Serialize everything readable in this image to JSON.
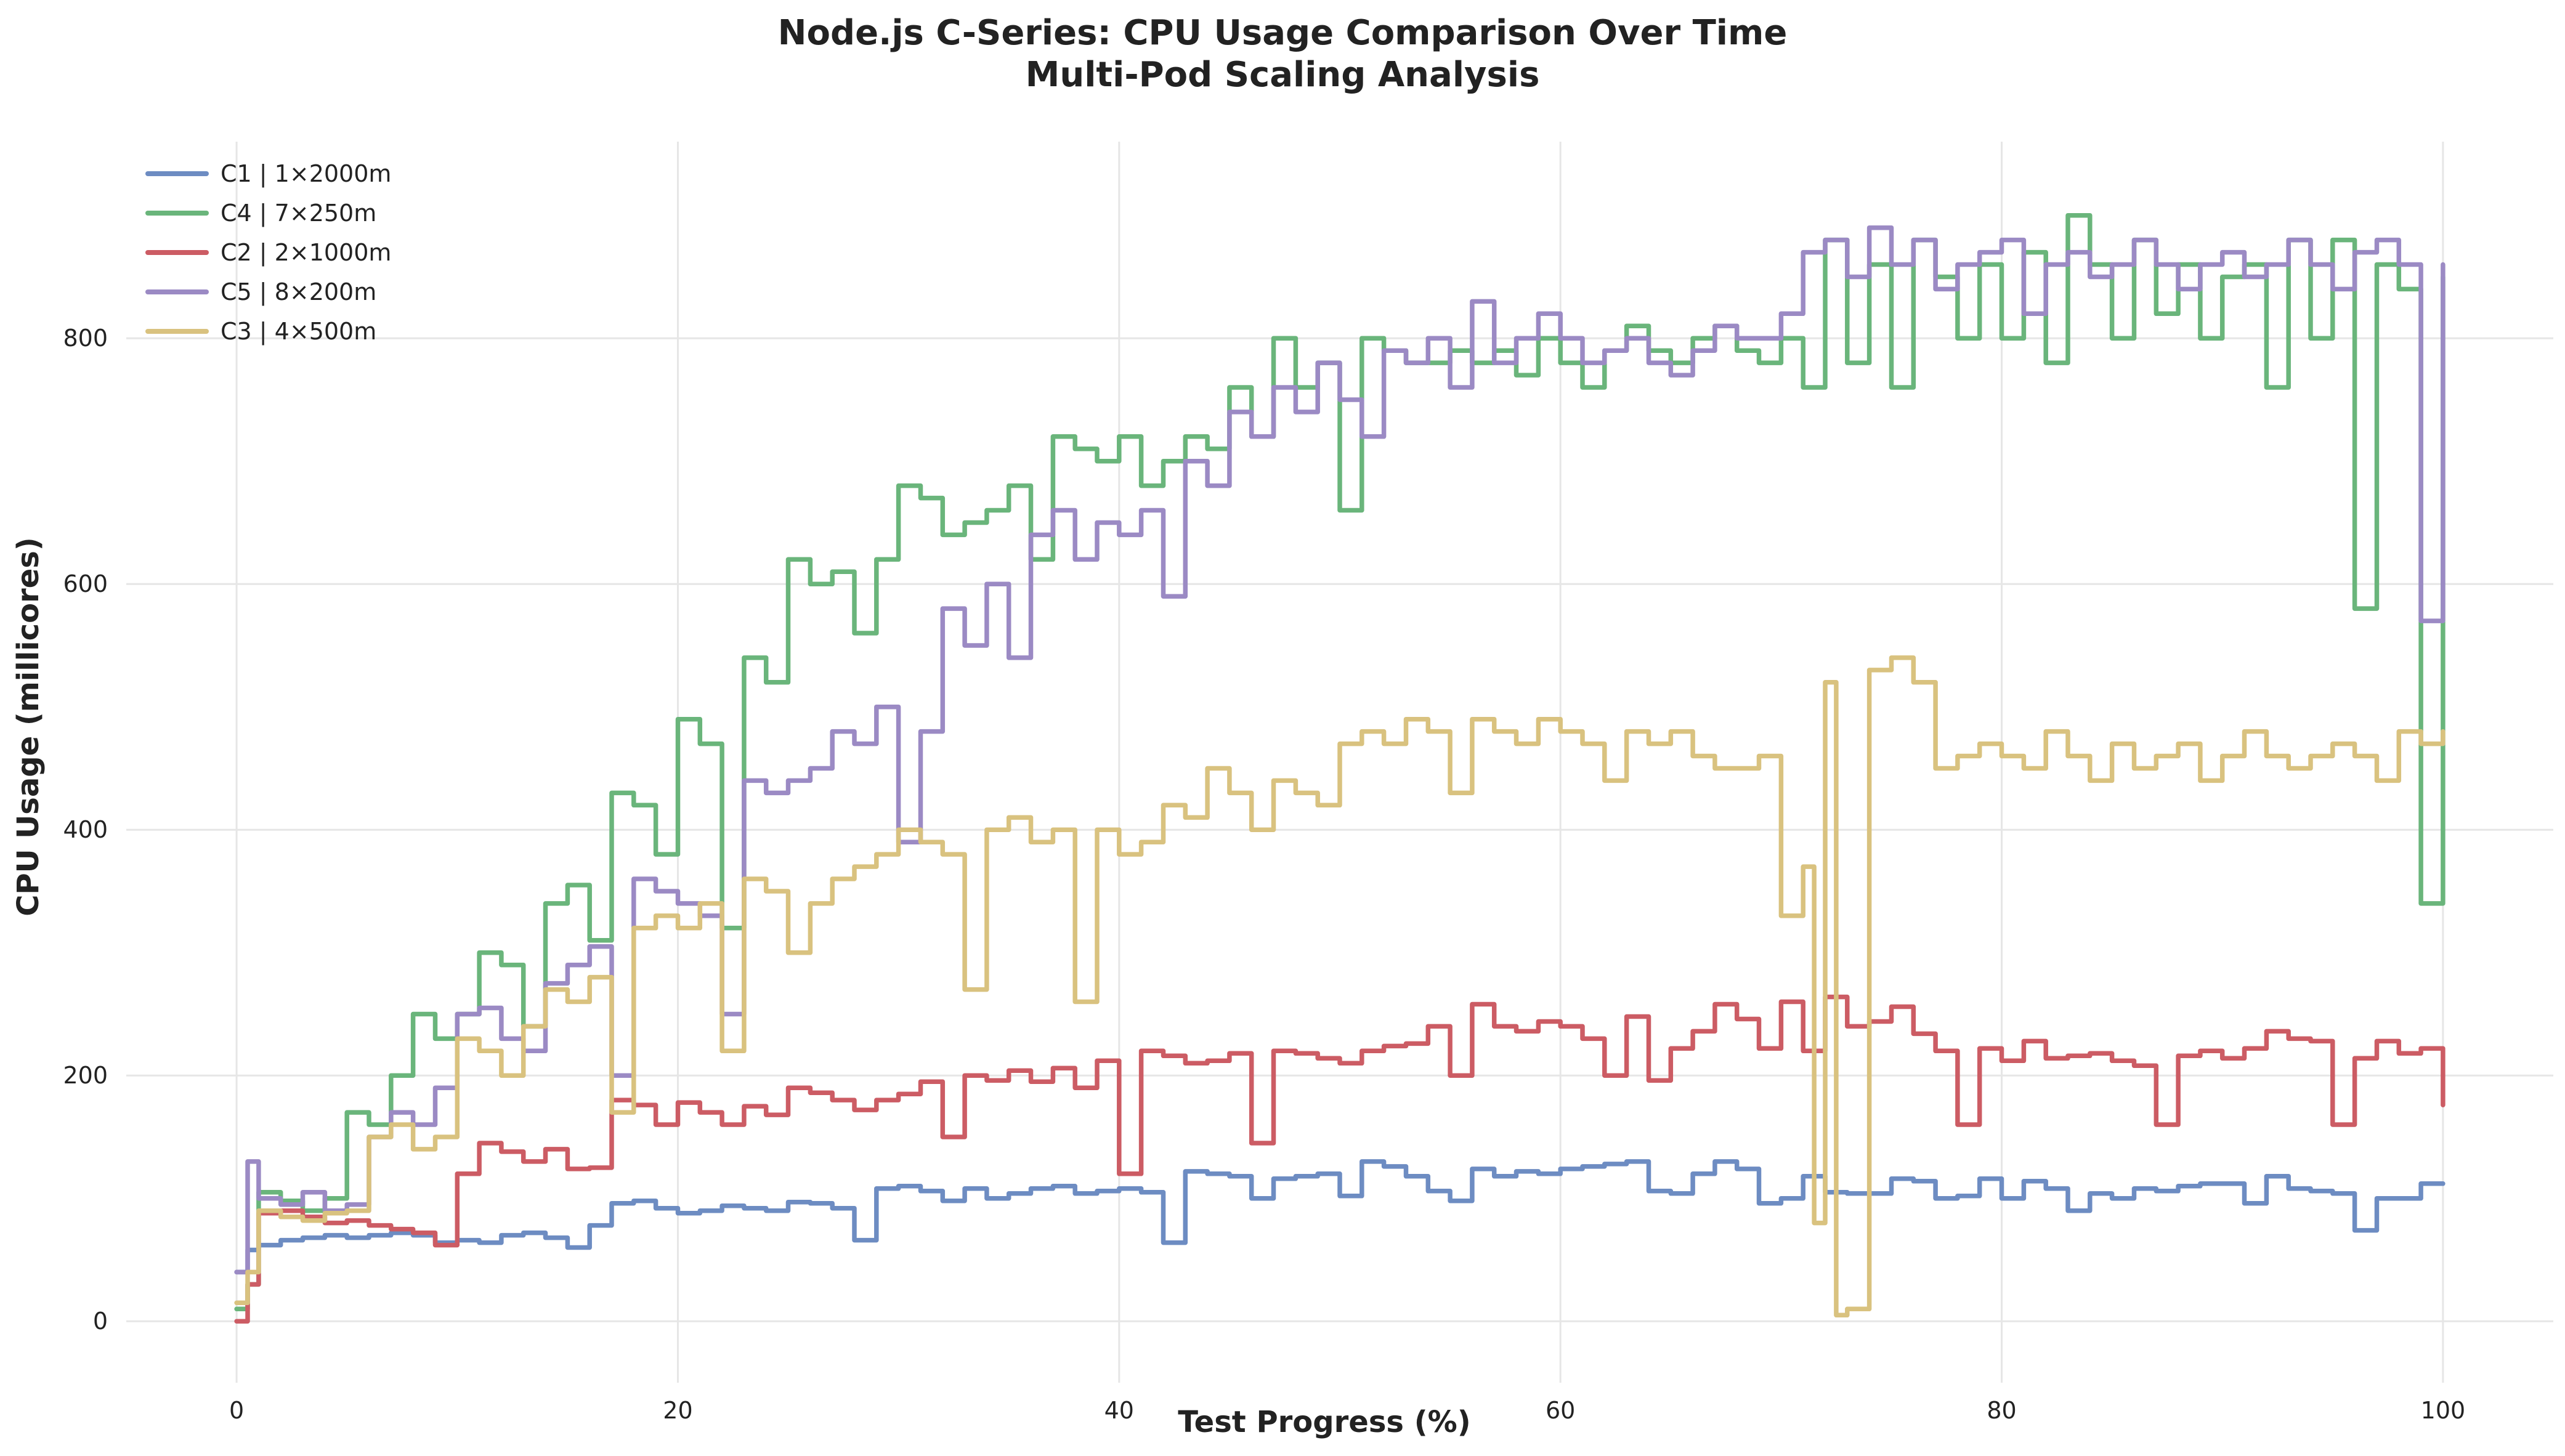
{
  "chart_data": {
    "type": "line",
    "title": "Node.js C-Series: CPU Usage Comparison Over Time",
    "subtitle": "Multi-Pod Scaling Analysis",
    "xlabel": "Test Progress (%)",
    "ylabel": "CPU Usage (millicores)",
    "xlim": [
      -5,
      105
    ],
    "ylim": [
      -50,
      960
    ],
    "xticks": [
      0,
      20,
      40,
      60,
      80,
      100
    ],
    "yticks": [
      0,
      200,
      400,
      600,
      800
    ],
    "grid": true,
    "legend_position": "top-left",
    "step": true,
    "series": [
      {
        "name": "C1 | 1×2000m",
        "color": "#6d8cc2",
        "x": [
          0,
          0.5,
          1,
          2,
          3,
          4,
          5,
          6,
          7,
          8,
          9,
          10,
          11,
          12,
          13,
          14,
          15,
          16,
          17,
          18,
          19,
          20,
          21,
          22,
          23,
          24,
          25,
          26,
          27,
          28,
          29,
          30,
          31,
          32,
          33,
          34,
          35,
          36,
          37,
          38,
          39,
          40,
          41,
          42,
          43,
          44,
          45,
          46,
          47,
          48,
          49,
          50,
          51,
          52,
          53,
          54,
          55,
          56,
          57,
          58,
          59,
          60,
          61,
          62,
          63,
          64,
          65,
          66,
          67,
          68,
          69,
          70,
          71,
          72,
          73,
          74,
          75,
          76,
          77,
          78,
          79,
          80,
          81,
          82,
          83,
          84,
          85,
          86,
          87,
          88,
          89,
          90,
          91,
          92,
          93,
          94,
          95,
          96,
          97,
          98,
          99,
          100
        ],
        "y": [
          40,
          58,
          62,
          66,
          68,
          70,
          68,
          70,
          72,
          70,
          64,
          66,
          64,
          70,
          72,
          68,
          60,
          78,
          96,
          98,
          92,
          88,
          90,
          94,
          92,
          90,
          97,
          96,
          92,
          66,
          108,
          110,
          106,
          98,
          108,
          100,
          104,
          108,
          110,
          104,
          106,
          108,
          105,
          64,
          122,
          120,
          118,
          100,
          116,
          118,
          120,
          102,
          130,
          126,
          118,
          106,
          98,
          124,
          118,
          122,
          120,
          124,
          126,
          128,
          130,
          106,
          104,
          120,
          130,
          124,
          96,
          100,
          118,
          105,
          104,
          104,
          116,
          114,
          100,
          102,
          116,
          100,
          114,
          108,
          90,
          104,
          100,
          108,
          106,
          110,
          112,
          112,
          96,
          118,
          108,
          106,
          104,
          74,
          100,
          100,
          112,
          112
        ]
      },
      {
        "name": "C4 | 7×250m",
        "color": "#6ab57b",
        "x": [
          0,
          0.5,
          1,
          2,
          3,
          4,
          5,
          6,
          7,
          8,
          9,
          10,
          11,
          12,
          13,
          14,
          15,
          16,
          17,
          18,
          19,
          20,
          21,
          22,
          23,
          24,
          25,
          26,
          27,
          28,
          29,
          30,
          31,
          32,
          33,
          34,
          35,
          36,
          37,
          38,
          39,
          40,
          41,
          42,
          43,
          44,
          45,
          46,
          47,
          48,
          49,
          50,
          51,
          52,
          53,
          54,
          55,
          56,
          57,
          58,
          59,
          60,
          61,
          62,
          63,
          64,
          65,
          66,
          67,
          68,
          69,
          70,
          71,
          72,
          73,
          74,
          75,
          76,
          77,
          78,
          79,
          80,
          81,
          82,
          83,
          84,
          85,
          86,
          87,
          88,
          89,
          90,
          91,
          92,
          93,
          94,
          95,
          96,
          97,
          98,
          99,
          100
        ],
        "y": [
          10,
          30,
          105,
          98,
          90,
          100,
          170,
          160,
          200,
          250,
          230,
          250,
          300,
          290,
          240,
          340,
          355,
          310,
          430,
          420,
          380,
          490,
          470,
          320,
          540,
          520,
          620,
          600,
          610,
          560,
          620,
          680,
          670,
          640,
          650,
          660,
          680,
          620,
          720,
          710,
          700,
          720,
          680,
          700,
          720,
          710,
          760,
          720,
          800,
          760,
          780,
          660,
          800,
          790,
          780,
          780,
          790,
          780,
          790,
          770,
          800,
          780,
          760,
          790,
          810,
          790,
          780,
          800,
          810,
          790,
          780,
          800,
          760,
          880,
          780,
          860,
          760,
          880,
          850,
          800,
          860,
          800,
          870,
          780,
          900,
          860,
          800,
          880,
          820,
          860,
          800,
          850,
          860,
          760,
          880,
          800,
          880,
          580,
          860,
          840,
          340,
          850
        ]
      },
      {
        "name": "C2 | 2×1000m",
        "color": "#cc5c64",
        "x": [
          0,
          0.5,
          1,
          2,
          3,
          4,
          5,
          6,
          7,
          8,
          9,
          10,
          11,
          12,
          13,
          14,
          15,
          16,
          17,
          18,
          19,
          20,
          21,
          22,
          23,
          24,
          25,
          26,
          27,
          28,
          29,
          30,
          31,
          32,
          33,
          34,
          35,
          36,
          37,
          38,
          39,
          40,
          41,
          42,
          43,
          44,
          45,
          46,
          47,
          48,
          49,
          50,
          51,
          52,
          53,
          54,
          55,
          56,
          57,
          58,
          59,
          60,
          61,
          62,
          63,
          64,
          65,
          66,
          67,
          68,
          69,
          70,
          71,
          72,
          73,
          74,
          75,
          76,
          77,
          78,
          79,
          80,
          81,
          82,
          83,
          84,
          85,
          86,
          87,
          88,
          89,
          90,
          91,
          92,
          93,
          94,
          95,
          96,
          97,
          98,
          99,
          100
        ],
        "y": [
          0,
          30,
          88,
          90,
          85,
          80,
          82,
          78,
          75,
          72,
          62,
          120,
          145,
          138,
          130,
          140,
          124,
          125,
          180,
          176,
          160,
          178,
          170,
          160,
          175,
          168,
          190,
          186,
          180,
          172,
          180,
          185,
          195,
          150,
          200,
          196,
          204,
          195,
          206,
          190,
          212,
          120,
          220,
          216,
          210,
          212,
          218,
          145,
          220,
          218,
          214,
          210,
          220,
          224,
          226,
          240,
          200,
          258,
          240,
          236,
          244,
          240,
          230,
          200,
          248,
          196,
          222,
          236,
          258,
          246,
          222,
          260,
          220,
          264,
          240,
          244,
          256,
          234,
          220,
          160,
          222,
          212,
          228,
          214,
          216,
          218,
          212,
          208,
          160,
          216,
          220,
          214,
          222,
          236,
          230,
          228,
          160,
          214,
          228,
          218,
          222,
          176
        ]
      },
      {
        "name": "C5 | 8×200m",
        "color": "#9b8ac4",
        "x": [
          0,
          0.5,
          1,
          2,
          3,
          4,
          5,
          6,
          7,
          8,
          9,
          10,
          11,
          12,
          13,
          14,
          15,
          16,
          17,
          18,
          19,
          20,
          21,
          22,
          23,
          24,
          25,
          26,
          27,
          28,
          29,
          30,
          31,
          32,
          33,
          34,
          35,
          36,
          37,
          38,
          39,
          40,
          41,
          42,
          43,
          44,
          45,
          46,
          47,
          48,
          49,
          50,
          51,
          52,
          53,
          54,
          55,
          56,
          57,
          58,
          59,
          60,
          61,
          62,
          63,
          64,
          65,
          66,
          67,
          68,
          69,
          70,
          71,
          72,
          73,
          74,
          75,
          76,
          77,
          78,
          79,
          80,
          81,
          82,
          83,
          84,
          85,
          86,
          87,
          88,
          89,
          90,
          91,
          92,
          93,
          94,
          95,
          96,
          97,
          98,
          99,
          100
        ],
        "y": [
          40,
          130,
          100,
          95,
          105,
          90,
          95,
          150,
          170,
          160,
          190,
          250,
          255,
          230,
          220,
          275,
          290,
          305,
          200,
          360,
          350,
          340,
          330,
          250,
          440,
          430,
          440,
          450,
          480,
          470,
          500,
          390,
          480,
          580,
          550,
          600,
          540,
          640,
          660,
          620,
          650,
          640,
          660,
          590,
          700,
          680,
          740,
          720,
          760,
          740,
          780,
          750,
          720,
          790,
          780,
          800,
          760,
          830,
          780,
          800,
          820,
          800,
          780,
          790,
          800,
          780,
          770,
          790,
          810,
          800,
          800,
          820,
          870,
          880,
          850,
          890,
          860,
          880,
          840,
          860,
          870,
          880,
          820,
          860,
          870,
          850,
          860,
          880,
          860,
          840,
          860,
          870,
          850,
          860,
          880,
          860,
          840,
          870,
          880,
          860,
          570,
          860
        ]
      },
      {
        "name": "C3 | 4×500m",
        "color": "#d9c27f",
        "x": [
          0,
          0.5,
          1,
          2,
          3,
          4,
          5,
          6,
          7,
          8,
          9,
          10,
          11,
          12,
          13,
          14,
          15,
          16,
          17,
          18,
          19,
          20,
          21,
          22,
          23,
          24,
          25,
          26,
          27,
          28,
          29,
          30,
          31,
          32,
          33,
          34,
          35,
          36,
          37,
          38,
          39,
          40,
          41,
          42,
          43,
          44,
          45,
          46,
          47,
          48,
          49,
          50,
          51,
          52,
          53,
          54,
          55,
          56,
          57,
          58,
          59,
          60,
          61,
          62,
          63,
          64,
          65,
          66,
          67,
          68,
          69,
          70,
          71,
          71.5,
          72,
          72.5,
          73,
          74,
          75,
          76,
          77,
          78,
          79,
          80,
          81,
          82,
          83,
          84,
          85,
          86,
          87,
          88,
          89,
          90,
          91,
          92,
          93,
          94,
          95,
          96,
          97,
          98,
          99,
          100
        ],
        "y": [
          15,
          40,
          90,
          85,
          82,
          88,
          90,
          150,
          160,
          140,
          150,
          230,
          220,
          200,
          240,
          270,
          260,
          280,
          170,
          320,
          330,
          320,
          340,
          220,
          360,
          350,
          300,
          340,
          360,
          370,
          380,
          400,
          390,
          380,
          270,
          400,
          410,
          390,
          400,
          260,
          400,
          380,
          390,
          420,
          410,
          450,
          430,
          400,
          440,
          430,
          420,
          470,
          480,
          470,
          490,
          480,
          430,
          490,
          480,
          470,
          490,
          480,
          470,
          440,
          480,
          470,
          480,
          460,
          450,
          450,
          460,
          330,
          370,
          80,
          520,
          5,
          10,
          530,
          540,
          520,
          450,
          460,
          470,
          460,
          450,
          480,
          460,
          440,
          470,
          450,
          460,
          470,
          440,
          460,
          480,
          460,
          450,
          460,
          470,
          460,
          440,
          480,
          470,
          480
        ]
      }
    ]
  }
}
